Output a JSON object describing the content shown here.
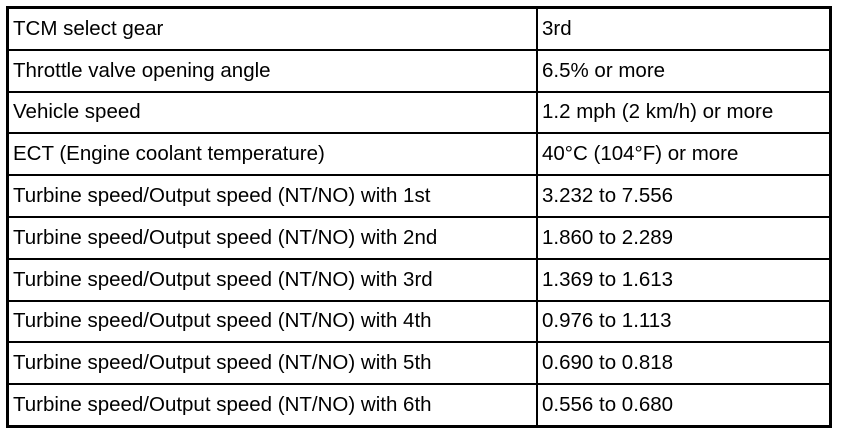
{
  "table": {
    "rows": [
      [
        "TCM select gear",
        "3rd"
      ],
      [
        "Throttle valve opening angle",
        "6.5% or more"
      ],
      [
        "Vehicle speed",
        "1.2 mph (2 km/h) or more"
      ],
      [
        "ECT (Engine coolant temperature)",
        "40°C (104°F) or more"
      ],
      [
        "Turbine speed/Output speed (NT/NO) with 1st",
        "3.232 to 7.556"
      ],
      [
        "Turbine speed/Output speed (NT/NO) with 2nd",
        "1.860 to 2.289"
      ],
      [
        "Turbine speed/Output speed (NT/NO) with 3rd",
        "1.369 to 1.613"
      ],
      [
        "Turbine speed/Output speed (NT/NO) with 4th",
        "0.976 to 1.113"
      ],
      [
        "Turbine speed/Output speed (NT/NO) with 5th",
        "0.690 to 0.818"
      ],
      [
        "Turbine speed/Output speed (NT/NO) with 6th",
        "0.556 to 0.680"
      ]
    ]
  }
}
